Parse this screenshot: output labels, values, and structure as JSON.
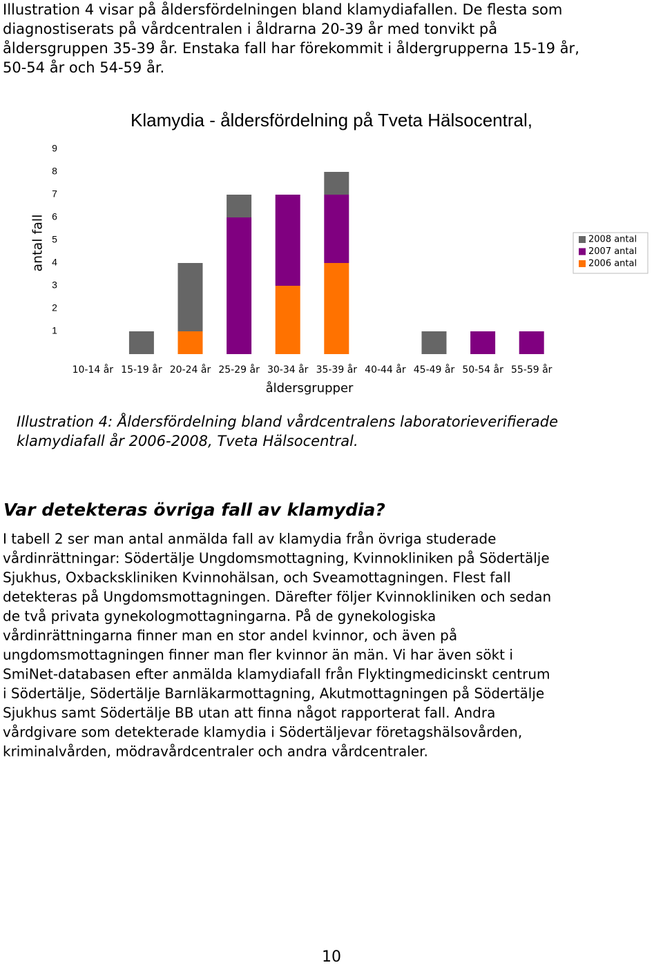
{
  "intro": [
    "Illustration 4 visar på åldersfördelningen bland klamydiafallen. De flesta som",
    "diagnostiserats på vårdcentralen i åldrarna 20-39 år med tonvikt på",
    "åldersgruppen 35-39 år. Enstaka fall har förekommit i åldergrupperna 15-19 år,",
    "50-54 år och 54-59 år."
  ],
  "chart_data": {
    "type": "stacked_bar",
    "title": "Klamydia - åldersfördelning på Tveta Hälsocentral,",
    "x_label": "åldersgrupper",
    "y_label": "antal fall",
    "categories": [
      "10-14 år",
      "15-19 år",
      "20-24 år",
      "25-29 år",
      "30-34 år",
      "35-39 år",
      "40-44 år",
      "45-49 år",
      "50-54 år",
      "55-59 år"
    ],
    "series": [
      {
        "name": "2006 antal",
        "color": "#ff7200",
        "values": [
          0,
          0,
          1,
          0,
          3,
          4,
          0,
          0,
          0,
          0
        ]
      },
      {
        "name": "2007 antal",
        "color": "#800080",
        "values": [
          0,
          0,
          0,
          6,
          4,
          3,
          0,
          0,
          1,
          1
        ]
      },
      {
        "name": "2008 antal",
        "color": "#666666",
        "values": [
          0,
          1,
          3,
          1,
          0,
          1,
          0,
          1,
          0,
          0
        ]
      }
    ],
    "ylim": [
      0,
      9
    ],
    "yticks": [
      1,
      2,
      3,
      4,
      5,
      6,
      7,
      8,
      9
    ],
    "grid": false,
    "legend": "right"
  },
  "caption": [
    "Illustration 4: Åldersfördelning bland vårdcentralens laboratorieverifierade",
    "klamydiafall år 2006-2008, Tveta Hälsocentral."
  ],
  "heading": "Var detekteras övriga fall av klamydia?",
  "body": [
    "I tabell 2 ser man antal anmälda fall av klamydia från övriga studerade",
    "vårdinrättningar: Södertälje Ungdomsmottagning, Kvinnokliniken på Södertälje",
    "Sjukhus, Oxbackskliniken Kvinnohälsan, och Sveamottagningen. Flest fall",
    "detekteras på Ungdomsmottagningen. Därefter följer Kvinnokliniken och sedan",
    "de två privata gynekologmottagningarna. På de gynekologiska",
    "vårdinrättningarna finner man en stor andel kvinnor, och även på",
    "ungdomsmottagningen finner man fler kvinnor än män. Vi har även sökt i",
    "SmiNet-databasen efter anmälda klamydiafall från Flyktingmedicinskt centrum",
    "i Södertälje, Södertälje Barnläkarmottagning, Akutmottagningen på Södertälje",
    "Sjukhus samt Södertälje BB utan att finna något rapporterat fall. Andra",
    "vårdgivare som detekterade klamydia i Södertäljevar företagshälsovården,",
    "kriminalvården, mödravårdcentraler och andra vårdcentraler."
  ],
  "page_number": "10"
}
